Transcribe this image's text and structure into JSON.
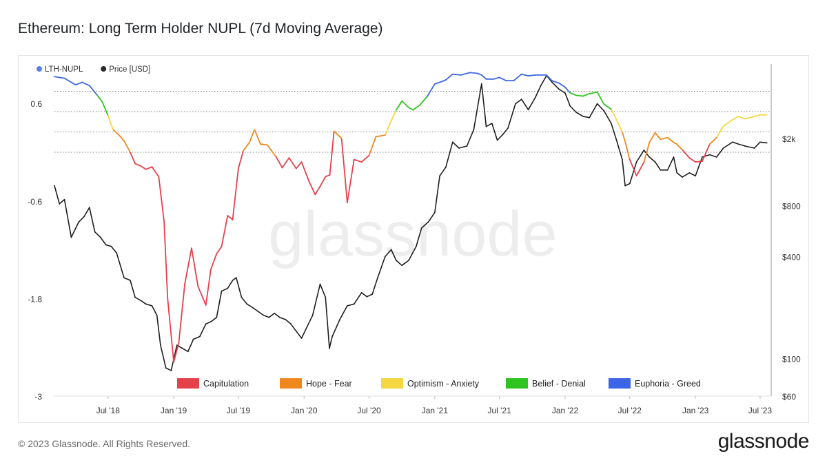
{
  "title": "Ethereum: Long Term Holder NUPL (7d Moving Average)",
  "footer": {
    "copyright": "© 2023 Glassnode. All Rights Reserved.",
    "logo": "glassnode"
  },
  "watermark": "glassnode",
  "chart_data": {
    "type": "line",
    "title": "Ethereum: Long Term Holder NUPL (7d Moving Average)",
    "legend": [
      {
        "name": "LTH-NUPL",
        "color": "#5b7fe0"
      },
      {
        "name": "Price [USD]",
        "color": "#2b2b2b"
      }
    ],
    "legend_position": "top-left",
    "zones": [
      {
        "name": "Capitulation",
        "color": "#e5414a"
      },
      {
        "name": "Hope - Fear",
        "color": "#f0871e"
      },
      {
        "name": "Optimism - Anxiety",
        "color": "#f5d742"
      },
      {
        "name": "Belief - Denial",
        "color": "#2ec41f"
      },
      {
        "name": "Euphoria - Greed",
        "color": "#3c66e6"
      }
    ],
    "zones_legend_position": "bottom-center",
    "y_left": {
      "ticks": [
        "0.6",
        "-0.6",
        "-1.8",
        "-3"
      ],
      "range": [
        -3,
        1.0
      ]
    },
    "y_right": {
      "scale": "log",
      "ticks": [
        "$2k",
        "$800",
        "$400",
        "$100",
        "$60"
      ],
      "tick_values": [
        2000,
        800,
        400,
        100,
        60
      ],
      "range": [
        60,
        5000
      ]
    },
    "x_axis": {
      "ticks": [
        "Jul '18",
        "Jan '19",
        "Jul '19",
        "Jan '20",
        "Jul '20",
        "Jan '21",
        "Jul '21",
        "Jan '22",
        "Jul '22",
        "Jan '23",
        "Jul '23"
      ],
      "tick_dates": [
        "2018-07-01",
        "2019-01-01",
        "2019-07-01",
        "2020-01-01",
        "2020-07-01",
        "2021-01-01",
        "2021-07-01",
        "2022-01-01",
        "2022-07-01",
        "2023-01-01",
        "2023-07-01"
      ],
      "range": [
        "2018-02-01",
        "2023-08-01"
      ]
    },
    "zone_thresholds": [
      0,
      0.25,
      0.5,
      0.75
    ],
    "series": [
      {
        "name": "LTH-NUPL",
        "x": [
          "2018-02-01",
          "2018-03-01",
          "2018-04-01",
          "2018-04-20",
          "2018-05-10",
          "2018-06-01",
          "2018-06-15",
          "2018-07-01",
          "2018-07-15",
          "2018-08-01",
          "2018-08-15",
          "2018-09-01",
          "2018-09-15",
          "2018-10-01",
          "2018-10-15",
          "2018-11-01",
          "2018-11-20",
          "2018-12-05",
          "2018-12-15",
          "2019-01-01",
          "2019-01-15",
          "2019-02-01",
          "2019-02-20",
          "2019-03-10",
          "2019-04-01",
          "2019-04-15",
          "2019-05-01",
          "2019-05-15",
          "2019-06-01",
          "2019-06-15",
          "2019-07-01",
          "2019-07-15",
          "2019-08-01",
          "2019-08-15",
          "2019-09-01",
          "2019-09-20",
          "2019-10-15",
          "2019-11-01",
          "2019-11-20",
          "2019-12-10",
          "2019-12-25",
          "2020-01-15",
          "2020-02-01",
          "2020-02-15",
          "2020-03-01",
          "2020-03-13",
          "2020-03-25",
          "2020-04-15",
          "2020-05-01",
          "2020-05-20",
          "2020-06-10",
          "2020-07-01",
          "2020-07-20",
          "2020-08-01",
          "2020-08-15",
          "2020-09-01",
          "2020-09-15",
          "2020-10-01",
          "2020-10-20",
          "2020-11-01",
          "2020-11-20",
          "2020-12-10",
          "2021-01-01",
          "2021-01-15",
          "2021-02-01",
          "2021-02-20",
          "2021-03-15",
          "2021-04-10",
          "2021-05-01",
          "2021-05-12",
          "2021-05-25",
          "2021-06-15",
          "2021-07-01",
          "2021-07-20",
          "2021-08-10",
          "2021-09-01",
          "2021-09-20",
          "2021-10-10",
          "2021-10-25",
          "2021-11-10",
          "2021-11-25",
          "2021-12-15",
          "2022-01-01",
          "2022-01-15",
          "2022-02-01",
          "2022-02-20",
          "2022-03-10",
          "2022-04-01",
          "2022-04-20",
          "2022-05-10",
          "2022-05-25",
          "2022-06-10",
          "2022-06-20",
          "2022-07-01",
          "2022-07-20",
          "2022-08-10",
          "2022-08-25",
          "2022-09-10",
          "2022-09-25",
          "2022-10-15",
          "2022-11-01",
          "2022-11-10",
          "2022-11-25",
          "2022-12-15",
          "2023-01-01",
          "2023-01-20",
          "2023-02-10",
          "2023-03-01",
          "2023-03-20",
          "2023-04-15",
          "2023-05-01",
          "2023-05-20",
          "2023-06-15",
          "2023-07-01",
          "2023-07-20"
        ],
        "values": [
          0.93,
          0.91,
          0.83,
          0.86,
          0.82,
          0.7,
          0.62,
          0.45,
          0.28,
          0.21,
          0.14,
          0.0,
          -0.14,
          -0.17,
          -0.21,
          -0.18,
          -0.3,
          -0.85,
          -1.8,
          -2.58,
          -2.35,
          -1.62,
          -1.18,
          -1.65,
          -1.88,
          -1.44,
          -1.25,
          -1.16,
          -0.78,
          -0.83,
          -0.2,
          0.02,
          0.12,
          0.28,
          0.1,
          0.09,
          -0.06,
          -0.19,
          -0.07,
          -0.2,
          -0.12,
          -0.36,
          -0.52,
          -0.42,
          -0.3,
          -0.28,
          0.26,
          0.17,
          -0.62,
          -0.09,
          -0.12,
          -0.04,
          0.19,
          0.2,
          0.21,
          0.39,
          0.52,
          0.63,
          0.55,
          0.52,
          0.58,
          0.68,
          0.84,
          0.86,
          0.89,
          0.96,
          0.95,
          0.98,
          0.97,
          0.95,
          0.9,
          0.9,
          0.92,
          0.88,
          0.88,
          0.96,
          0.94,
          0.95,
          0.95,
          0.95,
          0.88,
          0.85,
          0.8,
          0.73,
          0.7,
          0.69,
          0.72,
          0.74,
          0.59,
          0.53,
          0.4,
          0.25,
          0.1,
          -0.09,
          -0.29,
          -0.12,
          0.12,
          0.24,
          0.16,
          0.18,
          0.12,
          0.1,
          0.03,
          -0.07,
          -0.12,
          -0.11,
          0.1,
          0.18,
          0.32,
          0.4,
          0.44,
          0.41,
          0.44,
          0.46,
          0.46
        ]
      },
      {
        "name": "Price [USD]",
        "x": [
          "2018-02-01",
          "2018-02-15",
          "2018-03-01",
          "2018-03-20",
          "2018-04-10",
          "2018-04-25",
          "2018-05-10",
          "2018-05-25",
          "2018-06-10",
          "2018-06-25",
          "2018-07-10",
          "2018-07-25",
          "2018-08-15",
          "2018-09-01",
          "2018-09-15",
          "2018-10-01",
          "2018-10-15",
          "2018-11-01",
          "2018-11-15",
          "2018-11-25",
          "2018-12-10",
          "2018-12-25",
          "2019-01-10",
          "2019-01-25",
          "2019-02-10",
          "2019-02-25",
          "2019-03-15",
          "2019-04-01",
          "2019-04-15",
          "2019-05-01",
          "2019-05-15",
          "2019-06-01",
          "2019-06-15",
          "2019-06-25",
          "2019-07-10",
          "2019-07-25",
          "2019-08-10",
          "2019-08-25",
          "2019-09-10",
          "2019-09-25",
          "2019-10-10",
          "2019-10-25",
          "2019-11-10",
          "2019-11-25",
          "2019-12-10",
          "2019-12-25",
          "2020-01-10",
          "2020-01-25",
          "2020-02-15",
          "2020-03-01",
          "2020-03-12",
          "2020-03-20",
          "2020-04-10",
          "2020-05-01",
          "2020-05-20",
          "2020-06-10",
          "2020-06-25",
          "2020-07-10",
          "2020-07-25",
          "2020-08-15",
          "2020-09-01",
          "2020-09-15",
          "2020-10-01",
          "2020-10-20",
          "2020-11-10",
          "2020-11-25",
          "2020-12-15",
          "2021-01-01",
          "2021-01-15",
          "2021-02-01",
          "2021-02-20",
          "2021-03-10",
          "2021-04-01",
          "2021-04-20",
          "2021-05-12",
          "2021-05-25",
          "2021-06-10",
          "2021-06-25",
          "2021-07-10",
          "2021-07-25",
          "2021-08-15",
          "2021-09-01",
          "2021-09-20",
          "2021-10-10",
          "2021-10-25",
          "2021-11-10",
          "2021-11-25",
          "2021-12-15",
          "2022-01-01",
          "2022-01-15",
          "2022-02-01",
          "2022-02-20",
          "2022-03-10",
          "2022-04-01",
          "2022-04-20",
          "2022-05-10",
          "2022-05-25",
          "2022-06-10",
          "2022-06-18",
          "2022-07-01",
          "2022-07-20",
          "2022-08-10",
          "2022-08-25",
          "2022-09-10",
          "2022-09-25",
          "2022-10-15",
          "2022-11-01",
          "2022-11-10",
          "2022-11-25",
          "2022-12-15",
          "2023-01-01",
          "2023-01-20",
          "2023-02-10",
          "2023-03-01",
          "2023-03-20",
          "2023-04-15",
          "2023-05-01",
          "2023-05-20",
          "2023-06-15",
          "2023-07-01",
          "2023-07-20"
        ],
        "values": [
          1050,
          820,
          870,
          520,
          640,
          690,
          780,
          560,
          520,
          470,
          460,
          420,
          300,
          290,
          230,
          220,
          210,
          205,
          180,
          120,
          88,
          85,
          120,
          115,
          110,
          130,
          135,
          160,
          165,
          175,
          250,
          260,
          290,
          300,
          230,
          210,
          200,
          190,
          180,
          175,
          185,
          175,
          170,
          160,
          145,
          132,
          155,
          180,
          275,
          230,
          115,
          135,
          170,
          205,
          210,
          245,
          232,
          240,
          300,
          400,
          440,
          380,
          355,
          380,
          460,
          590,
          645,
          730,
          1200,
          1350,
          1900,
          1750,
          1800,
          2250,
          4200,
          2350,
          2450,
          1950,
          2100,
          2300,
          3200,
          3400,
          2950,
          3500,
          4100,
          4700,
          4300,
          3900,
          3700,
          3100,
          2850,
          2700,
          2650,
          3200,
          2900,
          2450,
          1950,
          1500,
          1050,
          1080,
          1450,
          1700,
          1550,
          1450,
          1300,
          1300,
          1550,
          1250,
          1180,
          1250,
          1200,
          1550,
          1600,
          1550,
          1750,
          1900,
          1850,
          1800,
          1750,
          1900,
          1880
        ]
      }
    ]
  }
}
